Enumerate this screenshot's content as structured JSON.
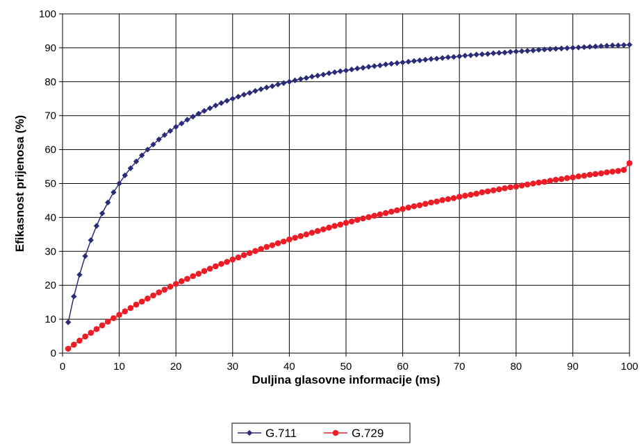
{
  "chart_data": {
    "type": "line",
    "xlabel": "Duljina glasovne informacije (ms)",
    "ylabel": "Efikasnost prijenosa (%)",
    "xlim": [
      0,
      100
    ],
    "ylim": [
      0,
      100
    ],
    "xticks": [
      0,
      10,
      20,
      30,
      40,
      50,
      60,
      70,
      80,
      90,
      100
    ],
    "yticks": [
      0,
      10,
      20,
      30,
      40,
      50,
      60,
      70,
      80,
      90,
      100
    ],
    "grid": true,
    "legend_position": "bottom-center",
    "series": [
      {
        "name": "G.711",
        "color": "#2b2b7a",
        "marker": "diamond",
        "x": [
          1,
          2,
          3,
          4,
          5,
          6,
          7,
          8,
          9,
          10,
          11,
          12,
          13,
          14,
          15,
          16,
          17,
          18,
          19,
          20,
          21,
          22,
          23,
          24,
          25,
          26,
          27,
          28,
          29,
          30,
          31,
          32,
          33,
          34,
          35,
          36,
          37,
          38,
          39,
          40,
          41,
          42,
          43,
          44,
          45,
          46,
          47,
          48,
          49,
          50,
          51,
          52,
          53,
          54,
          55,
          56,
          57,
          58,
          59,
          60,
          61,
          62,
          63,
          64,
          65,
          66,
          67,
          68,
          69,
          70,
          71,
          72,
          73,
          74,
          75,
          76,
          77,
          78,
          79,
          80,
          81,
          82,
          83,
          84,
          85,
          86,
          87,
          88,
          89,
          90,
          91,
          92,
          93,
          94,
          95,
          96,
          97,
          98,
          99,
          100
        ],
        "y": [
          9.1,
          16.7,
          23.1,
          28.6,
          33.3,
          37.5,
          41.2,
          44.4,
          47.4,
          50.0,
          52.4,
          54.5,
          56.5,
          58.3,
          60.0,
          61.5,
          63.0,
          64.3,
          65.5,
          66.7,
          67.7,
          68.8,
          69.7,
          70.6,
          71.4,
          72.2,
          73.0,
          73.7,
          74.4,
          75.0,
          75.6,
          76.2,
          76.7,
          77.3,
          77.8,
          78.3,
          78.7,
          79.2,
          79.6,
          80.0,
          80.4,
          80.8,
          81.1,
          81.5,
          81.8,
          82.1,
          82.5,
          82.8,
          83.1,
          83.3,
          83.6,
          83.9,
          84.1,
          84.4,
          84.6,
          84.8,
          85.1,
          85.3,
          85.5,
          85.7,
          85.9,
          86.1,
          86.3,
          86.5,
          86.7,
          86.8,
          87.0,
          87.2,
          87.3,
          87.5,
          87.7,
          87.8,
          88.0,
          88.1,
          88.2,
          88.4,
          88.5,
          88.6,
          88.8,
          88.9,
          89.0,
          89.1,
          89.2,
          89.4,
          89.5,
          89.6,
          89.7,
          89.8,
          89.9,
          90.0,
          90.1,
          90.2,
          90.3,
          90.4,
          90.5,
          90.6,
          90.7,
          90.7,
          90.8,
          90.9
        ]
      },
      {
        "name": "G.729",
        "color": "#ee1c24",
        "marker": "circle",
        "x": [
          1,
          2,
          3,
          4,
          5,
          6,
          7,
          8,
          9,
          10,
          11,
          12,
          13,
          14,
          15,
          16,
          17,
          18,
          19,
          20,
          21,
          22,
          23,
          24,
          25,
          26,
          27,
          28,
          29,
          30,
          31,
          32,
          33,
          34,
          35,
          36,
          37,
          38,
          39,
          40,
          41,
          42,
          43,
          44,
          45,
          46,
          47,
          48,
          49,
          50,
          51,
          52,
          53,
          54,
          55,
          56,
          57,
          58,
          59,
          60,
          61,
          62,
          63,
          64,
          65,
          66,
          67,
          68,
          69,
          70,
          71,
          72,
          73,
          74,
          75,
          76,
          77,
          78,
          79,
          80,
          81,
          82,
          83,
          84,
          85,
          86,
          87,
          88,
          89,
          90,
          91,
          92,
          93,
          94,
          95,
          96,
          97,
          98,
          99,
          100
        ],
        "y": [
          1.3,
          2.5,
          3.7,
          4.9,
          6.0,
          7.1,
          8.2,
          9.3,
          10.3,
          11.3,
          12.3,
          13.3,
          14.3,
          15.2,
          16.1,
          17.0,
          17.9,
          18.7,
          19.6,
          20.4,
          21.2,
          21.9,
          22.7,
          23.4,
          24.2,
          24.9,
          25.6,
          26.3,
          26.9,
          27.6,
          28.2,
          28.9,
          29.5,
          30.1,
          30.7,
          31.3,
          31.8,
          32.4,
          32.9,
          33.5,
          34.0,
          34.5,
          35.0,
          35.5,
          36.0,
          36.5,
          37.0,
          37.5,
          37.9,
          38.4,
          38.8,
          39.3,
          39.7,
          40.1,
          40.5,
          40.9,
          41.3,
          41.7,
          42.1,
          42.5,
          42.9,
          43.3,
          43.6,
          44.0,
          44.4,
          44.7,
          45.1,
          45.4,
          45.7,
          46.1,
          46.4,
          46.7,
          47.0,
          47.4,
          47.7,
          48.0,
          48.3,
          48.6,
          48.9,
          49.1,
          49.4,
          49.7,
          50.0,
          50.3,
          50.5,
          50.8,
          51.1,
          51.3,
          51.6,
          51.8,
          52.1,
          52.3,
          52.6,
          52.8,
          53.0,
          53.3,
          53.5,
          53.7,
          54.0,
          56.0
        ]
      }
    ]
  }
}
